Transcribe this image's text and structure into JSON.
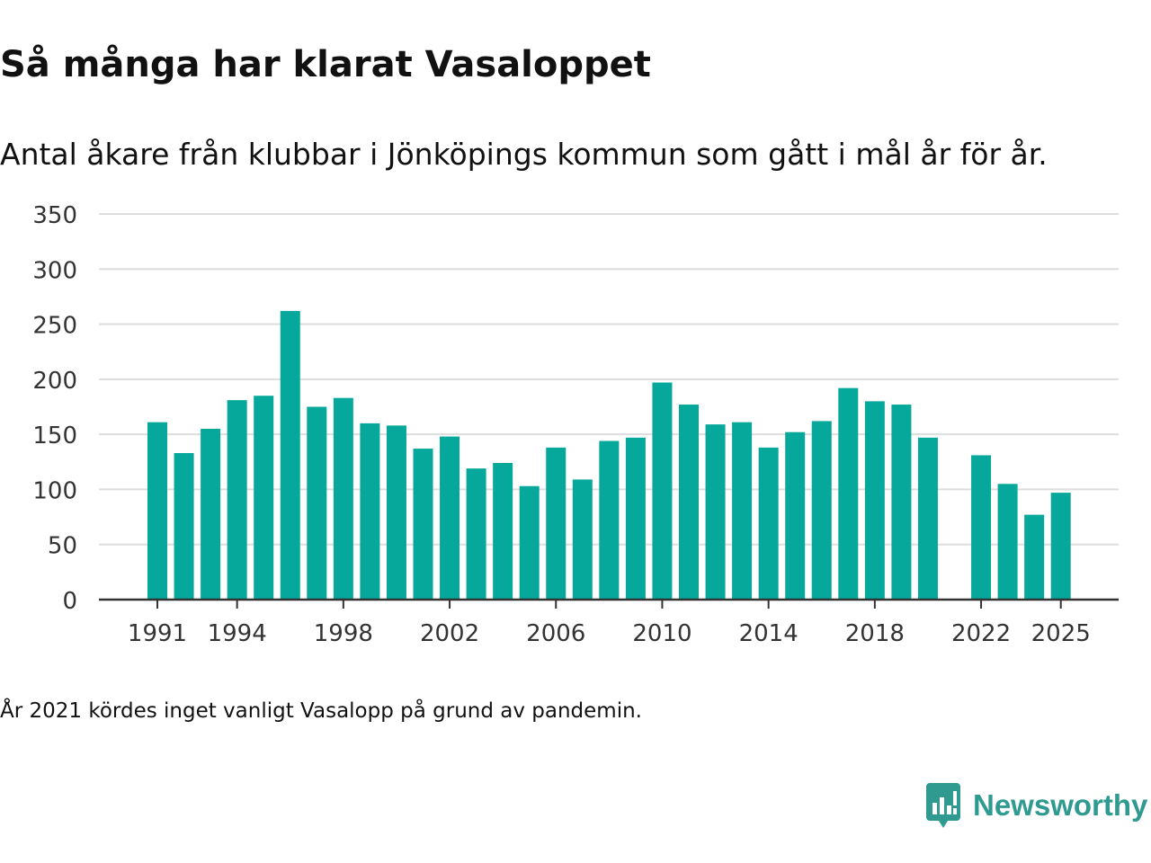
{
  "chart_data": {
    "type": "bar",
    "title": "Så många har klarat Vasaloppet",
    "subtitle": "Antal åkare från klubbar i Jönköpings kommun som gått i mål år för år.",
    "categories": [
      1991,
      1992,
      1993,
      1994,
      1995,
      1996,
      1997,
      1998,
      1999,
      2000,
      2001,
      2002,
      2003,
      2004,
      2005,
      2006,
      2007,
      2008,
      2009,
      2010,
      2011,
      2012,
      2013,
      2014,
      2015,
      2016,
      2017,
      2018,
      2019,
      2020,
      2021,
      2022,
      2023,
      2024,
      2025
    ],
    "values": [
      161,
      133,
      155,
      181,
      185,
      262,
      175,
      183,
      160,
      158,
      137,
      148,
      119,
      124,
      103,
      138,
      109,
      144,
      147,
      197,
      177,
      159,
      161,
      138,
      152,
      162,
      192,
      180,
      177,
      147,
      null,
      131,
      105,
      77,
      97
    ],
    "yticks": [
      0,
      50,
      100,
      150,
      200,
      250,
      300,
      350
    ],
    "xticks": [
      1991,
      1994,
      1998,
      2002,
      2006,
      2010,
      2014,
      2018,
      2022,
      2025
    ],
    "xlabel": "",
    "ylabel": "",
    "ylim": [
      0,
      350
    ],
    "grid": true,
    "legend": "none",
    "footnote": "År 2021 kördes inget vanligt Vasalopp på grund av pandemin.",
    "bar_color": "#05a89a",
    "grid_color": "#dddddd",
    "axis_color": "#333333"
  },
  "brand": {
    "name": "Newsworthy",
    "color": "#2f9a90",
    "logo_icon": "newsworthy-chart-icon"
  }
}
